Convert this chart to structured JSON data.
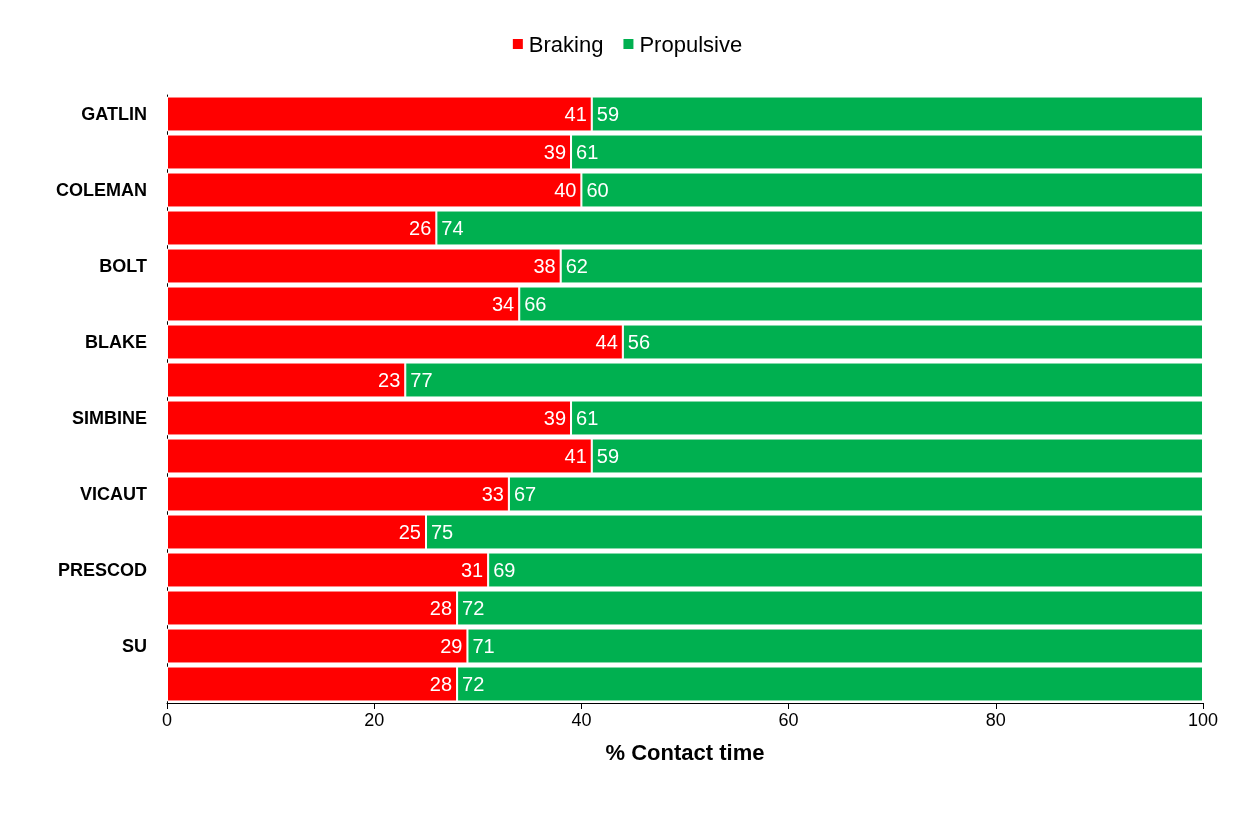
{
  "chart_data": {
    "type": "bar",
    "orientation": "horizontal",
    "stacked": true,
    "xlabel": "% Contact time",
    "categories": [
      "GATLIN",
      null,
      "COLEMAN",
      null,
      "BOLT",
      null,
      "BLAKE",
      null,
      "SIMBINE",
      null,
      "VICAUT",
      null,
      "PRESCOD",
      null,
      "SU",
      null
    ],
    "series": [
      {
        "name": "Braking",
        "color": "#ff0000",
        "values": [
          41,
          39,
          40,
          26,
          38,
          34,
          44,
          23,
          39,
          41,
          33,
          25,
          31,
          28,
          29,
          28
        ]
      },
      {
        "name": "Propulsive",
        "color": "#00b050",
        "values": [
          59,
          61,
          60,
          74,
          62,
          66,
          56,
          77,
          61,
          59,
          67,
          75,
          69,
          72,
          71,
          72
        ]
      }
    ],
    "xlim": [
      0,
      100
    ],
    "xticks": [
      0,
      20,
      40,
      60,
      80,
      100
    ],
    "data_labels": true,
    "grid": false,
    "legend": "top"
  }
}
